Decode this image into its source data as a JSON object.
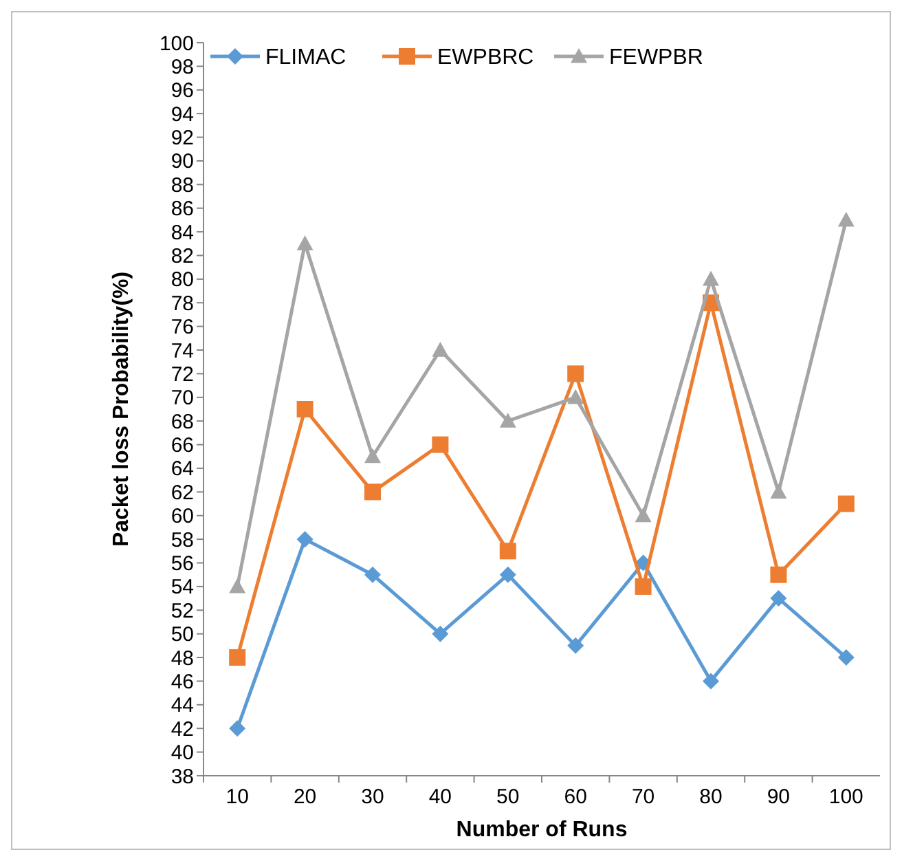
{
  "chart_data": {
    "type": "line",
    "xlabel": "Number of Runs",
    "ylabel": "Packet loss Probability(%)",
    "categories": [
      "10",
      "20",
      "30",
      "40",
      "50",
      "60",
      "70",
      "80",
      "90",
      "100"
    ],
    "series": [
      {
        "name": "FLIMAC",
        "color": "#5b9bd5",
        "marker": "diamond",
        "values": [
          42,
          58,
          55,
          50,
          55,
          49,
          56,
          46,
          53,
          48
        ]
      },
      {
        "name": "EWPBRC",
        "color": "#ed7d31",
        "marker": "square",
        "values": [
          48,
          69,
          62,
          66,
          57,
          72,
          54,
          78,
          55,
          61
        ]
      },
      {
        "name": "FEWPBR",
        "color": "#a5a5a5",
        "marker": "triangle",
        "values": [
          54,
          83,
          65,
          74,
          68,
          70,
          60,
          80,
          62,
          85
        ]
      }
    ],
    "ylim": [
      38,
      100
    ],
    "yticks": [
      38,
      40,
      42,
      44,
      46,
      48,
      50,
      52,
      54,
      56,
      58,
      60,
      62,
      64,
      66,
      68,
      70,
      72,
      74,
      76,
      78,
      80,
      82,
      84,
      86,
      88,
      90,
      92,
      94,
      96,
      98,
      100
    ],
    "grid": false,
    "legend": "top",
    "line_style": "solid"
  }
}
